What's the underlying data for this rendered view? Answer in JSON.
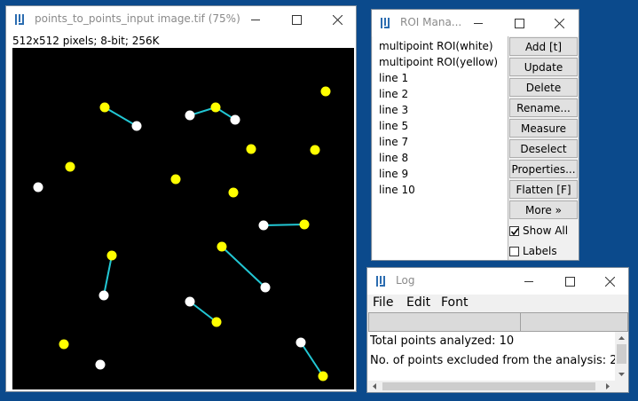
{
  "image_window": {
    "title": "points_to_points_input image.tif (75%)",
    "info": "512x512 pixels; 8-bit; 256K",
    "white_color": "#ffffff",
    "yellow_color": "#ffff00",
    "line_color": "#22c7d4"
  },
  "roi_manager": {
    "title": "ROI Mana...",
    "items": [
      "multipoint ROI(white)",
      "multipoint ROI(yellow)",
      "line 1",
      "line 2",
      "line 3",
      "line 5",
      "line 7",
      "line 8",
      "line 9",
      "line 10"
    ],
    "buttons": {
      "add": "Add [t]",
      "update": "Update",
      "delete": "Delete",
      "rename": "Rename...",
      "measure": "Measure",
      "deselect": "Deselect",
      "properties": "Properties...",
      "flatten": "Flatten [F]",
      "more": "More »"
    },
    "show_all": {
      "label": "Show All",
      "checked": true
    },
    "labels": {
      "label": "Labels",
      "checked": false
    }
  },
  "log": {
    "title": "Log",
    "menu": {
      "file": "File",
      "edit": "Edit",
      "font": "Font"
    },
    "lines": [
      "Total points analyzed: 10",
      "No. of points excluded from the analysis: 2"
    ]
  },
  "icons": {
    "app": "imagej-icon",
    "minimize": "minimize-icon",
    "maximize": "maximize-icon",
    "close": "close-icon"
  }
}
